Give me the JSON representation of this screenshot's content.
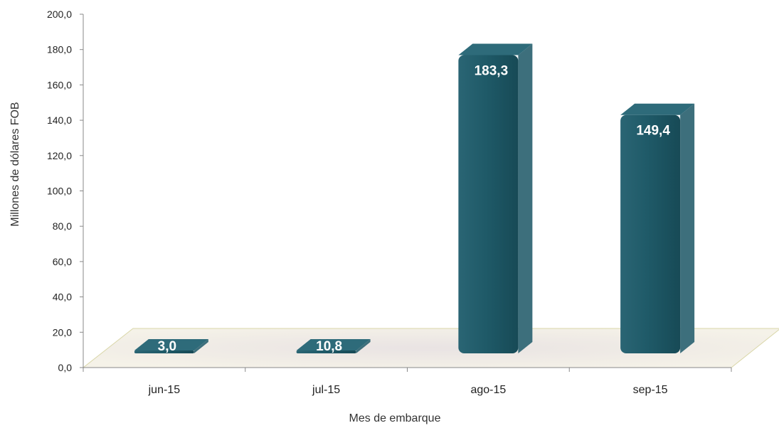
{
  "chart_data": {
    "type": "bar",
    "categories": [
      "jun-15",
      "jul-15",
      "ago-15",
      "sep-15"
    ],
    "values": [
      3.0,
      10.8,
      183.3,
      149.4
    ],
    "value_labels": [
      "3,0",
      "10,8",
      "183,3",
      "149,4"
    ],
    "y_ticks": [
      "0,0",
      "20,0",
      "40,0",
      "60,0",
      "80,0",
      "100,0",
      "120,0",
      "140,0",
      "160,0",
      "180,0",
      "200,0"
    ],
    "ylim": [
      0,
      200
    ],
    "xlabel": "Mes de embarque",
    "ylabel": "Millones de dólares FOB",
    "title": "",
    "grid": false,
    "legend": "none",
    "style": "3d-column",
    "bar_color": "#1f5a68",
    "bar_side_color": "#3d6f7c",
    "bar_top_color": "#2e6b7a",
    "floor_color": "#f7f5ea"
  }
}
